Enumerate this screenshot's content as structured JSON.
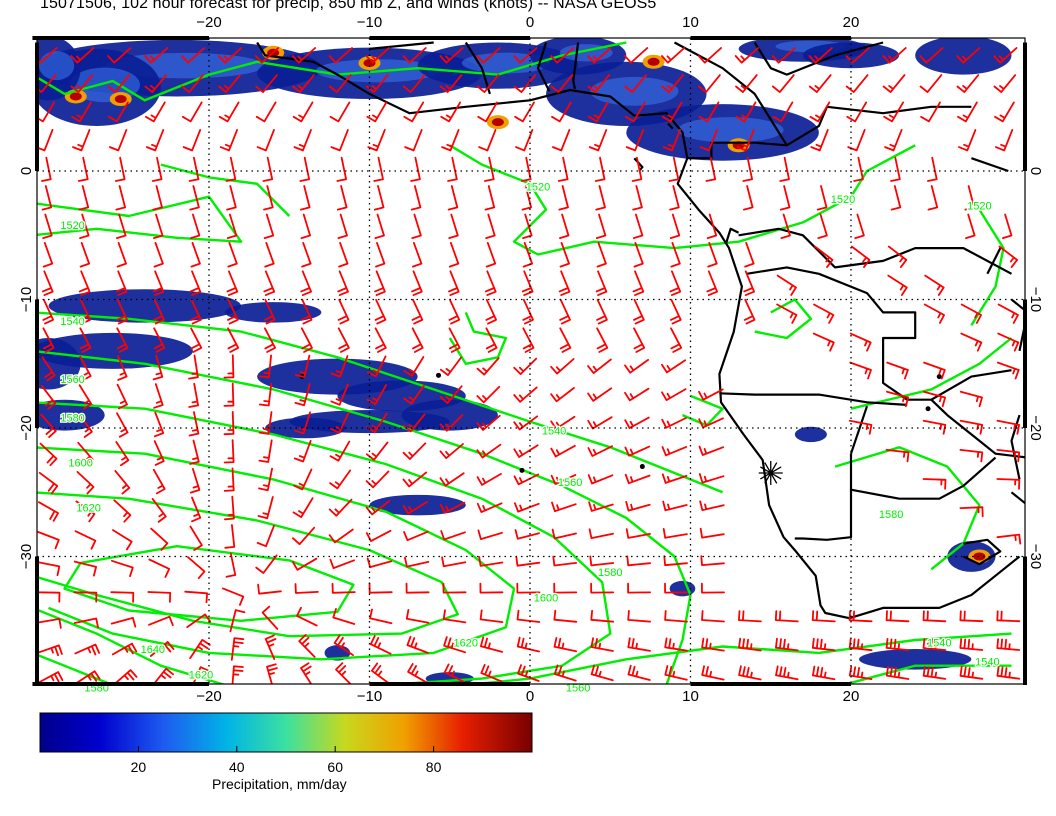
{
  "title": "15071506, 102 hour forecast for precip, 850 mb Z, and winds (knots) -- NASA GEOS5",
  "axes": {
    "lon_ticks": [
      -20,
      -10,
      0,
      10,
      20
    ],
    "lat_ticks": [
      0,
      -10,
      -20,
      -30
    ],
    "lon_range": [
      -31,
      30.5
    ],
    "lat_range": [
      -40,
      10
    ]
  },
  "colorbar": {
    "label": "Precipitation, mm/day",
    "ticks": [
      20,
      40,
      60,
      80
    ],
    "range": [
      0,
      100
    ]
  },
  "contour_labels": [
    {
      "text": "1520",
      "lon": 0.5,
      "lat": -1.5
    },
    {
      "text": "1520",
      "lon": -28.5,
      "lat": -4.5
    },
    {
      "text": "1520",
      "lon": 19.5,
      "lat": -2.5
    },
    {
      "text": "1520",
      "lon": 28,
      "lat": -3
    },
    {
      "text": "1540",
      "lon": -28.5,
      "lat": -12
    },
    {
      "text": "1560",
      "lon": -28.5,
      "lat": -16.5
    },
    {
      "text": "1580",
      "lon": -28.5,
      "lat": -19.5
    },
    {
      "text": "1600",
      "lon": -28,
      "lat": -23
    },
    {
      "text": "1620",
      "lon": -27.5,
      "lat": -26.5
    },
    {
      "text": "1540",
      "lon": 1.5,
      "lat": -20.5
    },
    {
      "text": "1560",
      "lon": 2.5,
      "lat": -24.5
    },
    {
      "text": "1580",
      "lon": 5,
      "lat": -31.5
    },
    {
      "text": "1600",
      "lon": 1,
      "lat": -33.5
    },
    {
      "text": "1620",
      "lon": -4,
      "lat": -37
    },
    {
      "text": "1640",
      "lon": -23.5,
      "lat": -37.5
    },
    {
      "text": "1620",
      "lon": -20.5,
      "lat": -39.5
    },
    {
      "text": "1580",
      "lon": -27,
      "lat": -40.5
    },
    {
      "text": "1560",
      "lon": 3,
      "lat": -40.5
    },
    {
      "text": "1540",
      "lon": 25.5,
      "lat": -37
    },
    {
      "text": "1540",
      "lon": 28.5,
      "lat": -38.5
    },
    {
      "text": "1580",
      "lon": 22.5,
      "lat": -27
    }
  ],
  "colors": {
    "wind_barbs": "#ff0000",
    "contours": "#00ee00",
    "coastlines": "#000000",
    "graticule": "#000000"
  },
  "markers": [
    {
      "icon": "asterisk-star-icon",
      "lon": 15,
      "lat": -23.5
    }
  ]
}
